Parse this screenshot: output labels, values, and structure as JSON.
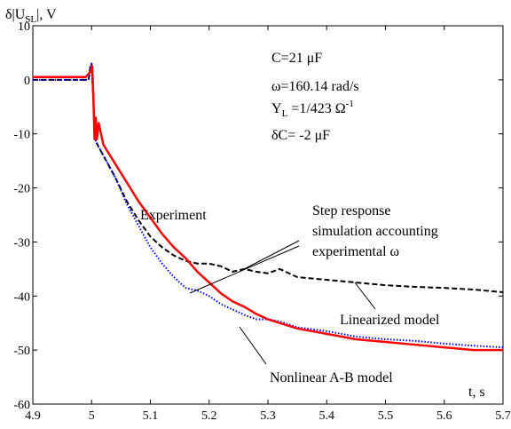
{
  "chart_data": {
    "type": "line",
    "ylabel_main": "δ|U",
    "ylabel_sub": "SL",
    "ylabel_end": "|, V",
    "xlabel": "t, s",
    "xlim": [
      4.9,
      5.7
    ],
    "ylim": [
      -60,
      10
    ],
    "xticks": [
      "4.9",
      "5",
      "5.1",
      "5.2",
      "5.3",
      "5.4",
      "5.5",
      "5.6",
      "5.7"
    ],
    "xtick_values": [
      4.9,
      5.0,
      5.1,
      5.2,
      5.3,
      5.4,
      5.5,
      5.6,
      5.7
    ],
    "yticks": [
      "10",
      "0",
      "-10",
      "-20",
      "-30",
      "-40",
      "-50",
      "-60"
    ],
    "ytick_values": [
      10,
      0,
      -10,
      -20,
      -30,
      -40,
      -50,
      -60
    ],
    "grid": false,
    "params": {
      "C": "C=21 μF",
      "omega": "ω=160.14 rad/s",
      "Y_main": "Y",
      "Y_sub": "L",
      "Y_rest": " =1/423 Ω",
      "Y_sup": "-1",
      "dC": "δC= -2 μF"
    },
    "annotations": {
      "experiment": "Experiment",
      "step_line1": "Step response",
      "step_line2": "simulation accounting",
      "step_line3": "experimental ω",
      "linearized": "Linearized model",
      "nonlinear": "Nonlinear A-B model"
    },
    "series": [
      {
        "label": "Experiment",
        "color": "#ff0000",
        "style": "solid",
        "points": [
          [
            4.9,
            0.5
          ],
          [
            4.95,
            0.5
          ],
          [
            4.99,
            0.5
          ],
          [
            4.998,
            1.5
          ],
          [
            5.001,
            2.5
          ],
          [
            5.003,
            -3
          ],
          [
            5.005,
            -11
          ],
          [
            5.007,
            -7
          ],
          [
            5.009,
            -11
          ],
          [
            5.012,
            -8
          ],
          [
            5.02,
            -12
          ],
          [
            5.04,
            -15.5
          ],
          [
            5.06,
            -19
          ],
          [
            5.08,
            -22.5
          ],
          [
            5.1,
            -25.5
          ],
          [
            5.12,
            -28.5
          ],
          [
            5.14,
            -31
          ],
          [
            5.16,
            -33
          ],
          [
            5.18,
            -35.5
          ],
          [
            5.2,
            -37.5
          ],
          [
            5.22,
            -39.5
          ],
          [
            5.24,
            -41
          ],
          [
            5.26,
            -42
          ],
          [
            5.28,
            -43.3
          ],
          [
            5.3,
            -44.3
          ],
          [
            5.32,
            -45
          ],
          [
            5.35,
            -46
          ],
          [
            5.4,
            -47
          ],
          [
            5.45,
            -48
          ],
          [
            5.5,
            -48.5
          ],
          [
            5.55,
            -49
          ],
          [
            5.6,
            -49.5
          ],
          [
            5.65,
            -50
          ],
          [
            5.7,
            -50
          ]
        ]
      },
      {
        "label": "Linearized model",
        "color": "#000000",
        "style": "dashed",
        "points": [
          [
            4.9,
            0
          ],
          [
            4.95,
            0
          ],
          [
            4.995,
            0
          ],
          [
            4.998,
            2.5
          ],
          [
            5.0,
            3
          ],
          [
            5.003,
            -4
          ],
          [
            5.006,
            -11
          ],
          [
            5.01,
            -12
          ],
          [
            5.02,
            -14
          ],
          [
            5.04,
            -18
          ],
          [
            5.06,
            -22.5
          ],
          [
            5.08,
            -26
          ],
          [
            5.1,
            -29
          ],
          [
            5.12,
            -31
          ],
          [
            5.14,
            -32.5
          ],
          [
            5.16,
            -33.5
          ],
          [
            5.18,
            -34
          ],
          [
            5.2,
            -34
          ],
          [
            5.22,
            -34.5
          ],
          [
            5.24,
            -35.5
          ],
          [
            5.26,
            -35
          ],
          [
            5.28,
            -35.5
          ],
          [
            5.3,
            -35.8
          ],
          [
            5.32,
            -35
          ],
          [
            5.35,
            -36.5
          ],
          [
            5.4,
            -37
          ],
          [
            5.45,
            -37.5
          ],
          [
            5.5,
            -38
          ],
          [
            5.55,
            -38.3
          ],
          [
            5.6,
            -38.5
          ],
          [
            5.65,
            -38.8
          ],
          [
            5.7,
            -39.3
          ]
        ]
      },
      {
        "label": "Nonlinear A-B model",
        "color": "#0000ff",
        "style": "dotted",
        "points": [
          [
            4.9,
            0
          ],
          [
            4.95,
            0
          ],
          [
            4.995,
            0
          ],
          [
            4.998,
            2.5
          ],
          [
            5.0,
            3
          ],
          [
            5.003,
            -4
          ],
          [
            5.006,
            -11
          ],
          [
            5.01,
            -12
          ],
          [
            5.02,
            -14
          ],
          [
            5.04,
            -18
          ],
          [
            5.06,
            -23
          ],
          [
            5.08,
            -27
          ],
          [
            5.1,
            -31
          ],
          [
            5.12,
            -34
          ],
          [
            5.14,
            -36.5
          ],
          [
            5.16,
            -38.5
          ],
          [
            5.18,
            -39
          ],
          [
            5.2,
            -40
          ],
          [
            5.22,
            -41.5
          ],
          [
            5.24,
            -42.5
          ],
          [
            5.26,
            -43.5
          ],
          [
            5.28,
            -44.3
          ],
          [
            5.3,
            -44.3
          ],
          [
            5.32,
            -44.7
          ],
          [
            5.35,
            -45.8
          ],
          [
            5.4,
            -46.5
          ],
          [
            5.45,
            -47.5
          ],
          [
            5.5,
            -48
          ],
          [
            5.55,
            -48.3
          ],
          [
            5.6,
            -48.8
          ],
          [
            5.65,
            -49.2
          ],
          [
            5.7,
            -49.5
          ]
        ]
      }
    ]
  }
}
